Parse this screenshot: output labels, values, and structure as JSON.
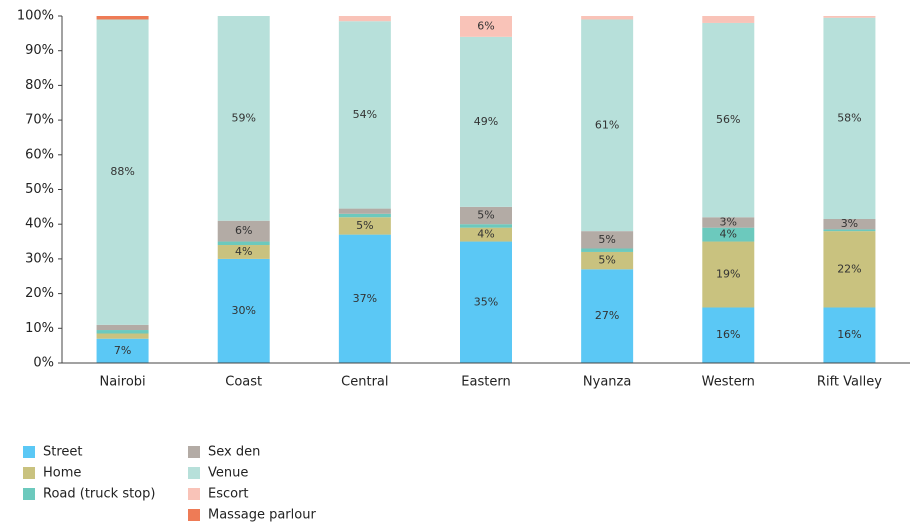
{
  "chart_data": {
    "type": "stacked_bar",
    "categories": [
      "Nairobi",
      "Coast",
      "Central",
      "Eastern",
      "Nyanza",
      "Western",
      "Rift Valley"
    ],
    "series": [
      {
        "name": "Street",
        "color": "#5bc8f5",
        "values": [
          7,
          30,
          37,
          35,
          27,
          16,
          16
        ],
        "value_labels": [
          "7%",
          "30%",
          "37%",
          "35%",
          "27%",
          "16%",
          "16%"
        ]
      },
      {
        "name": "Home",
        "color": "#c9c27f",
        "values": [
          1.5,
          4,
          5,
          4,
          5,
          19,
          22
        ],
        "value_labels": [
          null,
          "4%",
          "5%",
          "4%",
          "5%",
          "19%",
          "22%"
        ]
      },
      {
        "name": "Road (truck stop)",
        "color": "#6cc9bd",
        "values": [
          1,
          1,
          1,
          1,
          1,
          4,
          0.5
        ],
        "value_labels": [
          null,
          null,
          null,
          null,
          null,
          "4%",
          null
        ]
      },
      {
        "name": "Sex den",
        "color": "#b3aba5",
        "values": [
          1.5,
          6,
          1.5,
          5,
          5,
          3,
          3
        ],
        "value_labels": [
          null,
          "6%",
          null,
          "5%",
          "5%",
          "3%",
          "3%"
        ]
      },
      {
        "name": "Venue",
        "color": "#b7e0da",
        "values": [
          88,
          59,
          54,
          49,
          61,
          56,
          58
        ],
        "value_labels": [
          "88%",
          "59%",
          "54%",
          "49%",
          "61%",
          "56%",
          "58%"
        ]
      },
      {
        "name": "Escort",
        "color": "#f9c3b8",
        "values": [
          0,
          0,
          1.5,
          6,
          1,
          2,
          0.5
        ],
        "value_labels": [
          null,
          null,
          null,
          "6%",
          null,
          null,
          null
        ]
      },
      {
        "name": "Massage parlour",
        "color": "#ee7b56",
        "values": [
          1,
          0,
          0,
          0,
          0,
          0,
          0
        ],
        "value_labels": [
          null,
          null,
          null,
          null,
          null,
          null,
          null
        ]
      }
    ],
    "ylim": [
      0,
      100
    ],
    "yticks": [
      {
        "value": 0,
        "label": "0%"
      },
      {
        "value": 10,
        "label": "10%"
      },
      {
        "value": 20,
        "label": "20%"
      },
      {
        "value": 30,
        "label": "30%"
      },
      {
        "value": 40,
        "label": "40%"
      },
      {
        "value": 50,
        "label": "50%"
      },
      {
        "value": 60,
        "label": "60%"
      },
      {
        "value": 70,
        "label": "70%"
      },
      {
        "value": 80,
        "label": "80%"
      },
      {
        "value": 90,
        "label": "90%"
      },
      {
        "value": 100,
        "label": "100%"
      }
    ],
    "grid": false,
    "legend": "bottom-left"
  }
}
